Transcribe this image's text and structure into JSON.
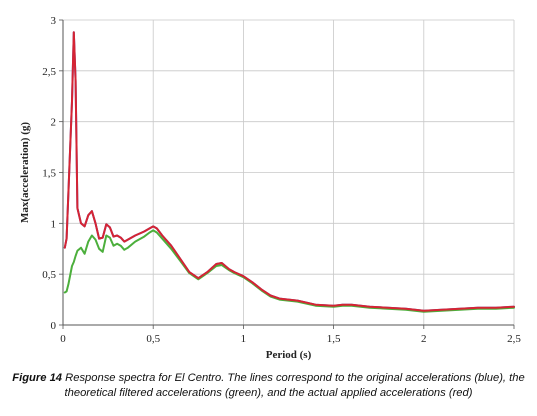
{
  "caption": {
    "label": "Figure 14",
    "text": "Response spectra for El Centro. The lines correspond to the original accelerations (blue), the theoretical filtered accelerations (green), and the actual applied accelerations (red)"
  },
  "chart_data": {
    "type": "line",
    "title": "",
    "xlabel": "Period (s)",
    "ylabel": "Max(acceleration) (g)",
    "xlim": [
      0,
      2.5
    ],
    "ylim": [
      0,
      3
    ],
    "x_ticks": [
      "0",
      "0,5",
      "1",
      "1,5",
      "2",
      "2,5"
    ],
    "y_ticks": [
      "0",
      "0,5",
      "1",
      "1,5",
      "2",
      "2,5",
      "3"
    ],
    "grid": true,
    "legend": "none",
    "series": [
      {
        "color": "#3a5fcd",
        "x": [
          0.01,
          0.02,
          0.03,
          0.05,
          0.06,
          0.07,
          0.08,
          0.1,
          0.12,
          0.14,
          0.16,
          0.18,
          0.2,
          0.22,
          0.24,
          0.26,
          0.28,
          0.3,
          0.32,
          0.34,
          0.36,
          0.4,
          0.45,
          0.48,
          0.5,
          0.52,
          0.55,
          0.6,
          0.65,
          0.7,
          0.75,
          0.8,
          0.85,
          0.88,
          0.92,
          0.95,
          1.0,
          1.05,
          1.1,
          1.15,
          1.2,
          1.3,
          1.4,
          1.5,
          1.55,
          1.6,
          1.7,
          1.8,
          1.9,
          2.0,
          2.1,
          2.2,
          2.3,
          2.4,
          2.5
        ],
        "values": [
          0.76,
          0.85,
          1.3,
          2.2,
          2.88,
          2.4,
          1.15,
          1.0,
          0.97,
          1.08,
          1.12,
          1.0,
          0.85,
          0.86,
          0.99,
          0.96,
          0.87,
          0.88,
          0.86,
          0.82,
          0.84,
          0.88,
          0.92,
          0.95,
          0.97,
          0.95,
          0.88,
          0.78,
          0.65,
          0.52,
          0.46,
          0.52,
          0.6,
          0.61,
          0.55,
          0.52,
          0.48,
          0.42,
          0.35,
          0.29,
          0.26,
          0.24,
          0.2,
          0.19,
          0.2,
          0.2,
          0.18,
          0.17,
          0.16,
          0.14,
          0.15,
          0.16,
          0.17,
          0.17,
          0.18
        ]
      },
      {
        "color": "#4caf3c",
        "x": [
          0.01,
          0.02,
          0.03,
          0.05,
          0.06,
          0.07,
          0.08,
          0.1,
          0.12,
          0.14,
          0.16,
          0.18,
          0.2,
          0.22,
          0.24,
          0.26,
          0.28,
          0.3,
          0.32,
          0.34,
          0.36,
          0.4,
          0.45,
          0.48,
          0.5,
          0.52,
          0.55,
          0.6,
          0.65,
          0.7,
          0.75,
          0.8,
          0.85,
          0.88,
          0.92,
          0.95,
          1.0,
          1.05,
          1.1,
          1.15,
          1.2,
          1.3,
          1.4,
          1.5,
          1.55,
          1.6,
          1.7,
          1.8,
          1.9,
          2.0,
          2.1,
          2.2,
          2.3,
          2.4,
          2.5
        ],
        "values": [
          0.32,
          0.33,
          0.4,
          0.58,
          0.62,
          0.68,
          0.73,
          0.76,
          0.7,
          0.82,
          0.88,
          0.84,
          0.75,
          0.72,
          0.88,
          0.86,
          0.78,
          0.8,
          0.78,
          0.74,
          0.76,
          0.82,
          0.87,
          0.91,
          0.93,
          0.91,
          0.85,
          0.75,
          0.63,
          0.51,
          0.45,
          0.51,
          0.58,
          0.59,
          0.54,
          0.51,
          0.47,
          0.41,
          0.34,
          0.28,
          0.25,
          0.23,
          0.19,
          0.18,
          0.19,
          0.19,
          0.17,
          0.16,
          0.15,
          0.13,
          0.14,
          0.15,
          0.16,
          0.16,
          0.17
        ]
      },
      {
        "color": "#d62433",
        "x": [
          0.01,
          0.02,
          0.03,
          0.05,
          0.06,
          0.07,
          0.08,
          0.1,
          0.12,
          0.14,
          0.16,
          0.18,
          0.2,
          0.22,
          0.24,
          0.26,
          0.28,
          0.3,
          0.32,
          0.34,
          0.36,
          0.4,
          0.45,
          0.48,
          0.5,
          0.52,
          0.55,
          0.6,
          0.65,
          0.7,
          0.75,
          0.8,
          0.85,
          0.88,
          0.92,
          0.95,
          1.0,
          1.05,
          1.1,
          1.15,
          1.2,
          1.3,
          1.4,
          1.5,
          1.55,
          1.6,
          1.7,
          1.8,
          1.9,
          2.0,
          2.1,
          2.2,
          2.3,
          2.4,
          2.5
        ],
        "values": [
          0.76,
          0.85,
          1.3,
          2.2,
          2.88,
          2.4,
          1.15,
          1.0,
          0.97,
          1.08,
          1.12,
          1.0,
          0.85,
          0.86,
          0.99,
          0.96,
          0.87,
          0.88,
          0.86,
          0.82,
          0.84,
          0.88,
          0.92,
          0.95,
          0.97,
          0.95,
          0.88,
          0.78,
          0.65,
          0.52,
          0.46,
          0.52,
          0.6,
          0.61,
          0.55,
          0.52,
          0.48,
          0.42,
          0.35,
          0.29,
          0.26,
          0.24,
          0.2,
          0.19,
          0.2,
          0.2,
          0.18,
          0.17,
          0.16,
          0.14,
          0.15,
          0.16,
          0.17,
          0.17,
          0.18
        ]
      }
    ]
  }
}
